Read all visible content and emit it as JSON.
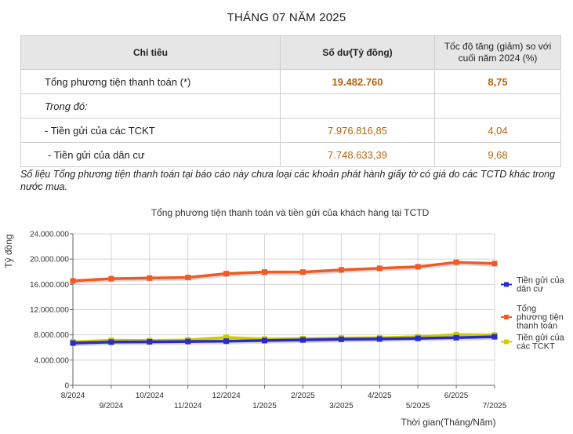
{
  "page_title": "THÁNG 07 NĂM 2025",
  "table": {
    "headers": [
      "Chỉ tiêu",
      "Số dư(Tỷ đồng)",
      "Tốc độ tăng (giảm) so với cuối năm 2024 (%)"
    ],
    "rows": [
      {
        "label": "Tổng phương tiện thanh toán (*)",
        "balance": "19.482.760",
        "growth": "8,75"
      },
      {
        "label": "Trong đó:",
        "balance": "",
        "growth": ""
      },
      {
        "label": "- Tiền gửi của các TCKT",
        "balance": "7.976.816,85",
        "growth": "4,04"
      },
      {
        "label": "- Tiền gửi của dân cư",
        "balance": "7.748.633,39",
        "growth": "9,68"
      }
    ]
  },
  "note": "Số liệu Tổng phương tiện thanh toán tại báo cáo này chưa loại các khoản phát hành giấy tờ có giá do các TCTD khác trong nước mua.",
  "chart_data": {
    "type": "line",
    "title": "Tổng phương tiện thanh toán và tiền gửi của khách hàng tại TCTD",
    "xlabel": "Thời gian(Tháng/Năm)",
    "ylabel": "Tỷ đồng",
    "ylim": [
      0,
      24000000
    ],
    "yticks": [
      0,
      4000000,
      8000000,
      12000000,
      16000000,
      20000000,
      24000000
    ],
    "ytick_labels": [
      "0",
      "4.000.000",
      "8.000.000",
      "12.000.000",
      "16.000.000",
      "20.000.000",
      "24.000.000"
    ],
    "grid": true,
    "legend_position": "right",
    "categories": [
      "8/2024",
      "9/2024",
      "10/2024",
      "11/2024",
      "12/2024",
      "1/2025",
      "2/2025",
      "3/2025",
      "4/2025",
      "5/2025",
      "6/2025",
      "7/2025"
    ],
    "series": [
      {
        "name": "Tiền gửi của dân cư",
        "color": "#2a2ad0",
        "values": [
          6700000,
          6850000,
          6900000,
          6950000,
          7000000,
          7100000,
          7200000,
          7300000,
          7350000,
          7450000,
          7550000,
          7700000
        ]
      },
      {
        "name": "Tổng phương tiện thanh toán",
        "color": "#ef5a25",
        "values": [
          16550000,
          16900000,
          17000000,
          17100000,
          17700000,
          17950000,
          17950000,
          18300000,
          18550000,
          18800000,
          19500000,
          19300000
        ]
      },
      {
        "name": "Tiền gửi của các TCKT",
        "color": "#cccc00",
        "values": [
          6900000,
          7150000,
          7100000,
          7200000,
          7600000,
          7350000,
          7400000,
          7500000,
          7550000,
          7700000,
          8050000,
          7980000
        ]
      }
    ],
    "legend_labels": [
      [
        "Tiền gửi của",
        "dân cư"
      ],
      [
        "Tổng",
        "phương tiện",
        "thanh toán"
      ],
      [
        "Tiền gửi của",
        "các TCKT"
      ]
    ]
  }
}
